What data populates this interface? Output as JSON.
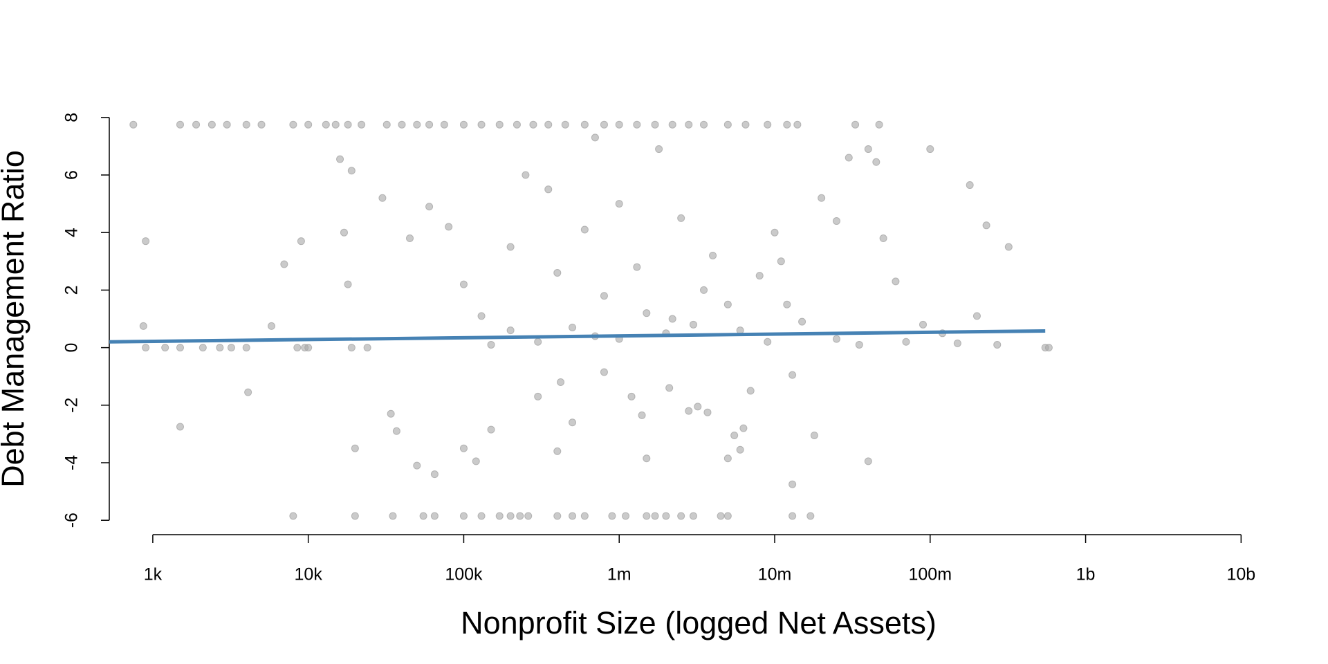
{
  "chart_data": {
    "type": "scatter",
    "xlabel": "Nonprofit Size (logged Net Assets)",
    "ylabel": "Debt Management Ratio",
    "xscale": "log",
    "xlim": [
      525,
      20000000000
    ],
    "ylim": [
      -6.5,
      8.5
    ],
    "xticks": [
      {
        "value": 1000,
        "label": "1k"
      },
      {
        "value": 10000,
        "label": "10k"
      },
      {
        "value": 100000,
        "label": "100k"
      },
      {
        "value": 1000000,
        "label": "1m"
      },
      {
        "value": 10000000,
        "label": "10m"
      },
      {
        "value": 100000000,
        "label": "100m"
      },
      {
        "value": 1000000000,
        "label": "1b"
      },
      {
        "value": 10000000000,
        "label": "10b"
      }
    ],
    "yticks": [
      -6,
      -4,
      -2,
      0,
      2,
      4,
      6,
      8
    ],
    "series": [
      {
        "type": "scatter",
        "color": "#a6a6a6",
        "x": [
          750,
          1500,
          1900,
          2400,
          3000,
          4000,
          5000,
          8000,
          10000,
          13000,
          15000,
          18000,
          22000,
          32000,
          40000,
          50000,
          60000,
          75000,
          100000,
          130000,
          170000,
          220000,
          280000,
          350000,
          450000,
          600000,
          800000,
          1000000,
          1300000,
          1700000,
          2200000,
          2800000,
          3500000,
          5000000,
          6500000,
          9000000,
          12000000,
          14000000,
          33000000,
          47000000,
          8000,
          20000,
          35000,
          55000,
          65000,
          100000,
          130000,
          170000,
          200000,
          230000,
          260000,
          400000,
          500000,
          600000,
          900000,
          1100000,
          1500000,
          1700000,
          2000000,
          2500000,
          3000000,
          4500000,
          5000000,
          13000000,
          17000000,
          900,
          1200,
          1500,
          2100,
          2700,
          3200,
          4000,
          8500,
          9500,
          10000,
          19000,
          24000,
          550000000,
          580000000,
          900,
          870,
          1500,
          4100,
          5800,
          7000,
          9000,
          16000,
          19000,
          18000,
          17000,
          20000,
          30000,
          34000,
          37000,
          50000,
          65000,
          45000,
          60000,
          80000,
          100000,
          120000,
          150000,
          100000,
          130000,
          200000,
          250000,
          300000,
          400000,
          420000,
          500000,
          350000,
          600000,
          800000,
          1200000,
          1400000,
          1500000,
          2100000,
          2800000,
          3200000,
          3700000,
          5000000,
          5500000,
          6000000,
          7000000,
          6300000,
          13000000,
          13000000,
          18000000,
          40000000,
          100000000,
          180000000,
          230000000,
          320000000,
          270000000,
          200000000,
          150000000,
          120000000,
          90000000,
          60000000,
          50000000,
          45000000,
          40000000,
          30000000,
          25000000,
          20000000,
          10000000,
          8000000,
          5000000,
          4000000,
          3000000,
          2000000,
          1500000,
          1000000,
          700000,
          500000,
          300000,
          200000,
          150000,
          1000000,
          1800000,
          700000,
          2500000,
          3500000,
          12000000,
          15000000,
          25000000,
          35000000,
          70000000,
          400000,
          800000,
          1300000,
          2200000,
          6000000,
          9000000,
          11000000
        ],
        "values": [
          7.75,
          7.75,
          7.75,
          7.75,
          7.75,
          7.75,
          7.75,
          7.75,
          7.75,
          7.75,
          7.75,
          7.75,
          7.75,
          7.75,
          7.75,
          7.75,
          7.75,
          7.75,
          7.75,
          7.75,
          7.75,
          7.75,
          7.75,
          7.75,
          7.75,
          7.75,
          7.75,
          7.75,
          7.75,
          7.75,
          7.75,
          7.75,
          7.75,
          7.75,
          7.75,
          7.75,
          7.75,
          7.75,
          7.75,
          7.75,
          -5.85,
          -5.85,
          -5.85,
          -5.85,
          -5.85,
          -5.85,
          -5.85,
          -5.85,
          -5.85,
          -5.85,
          -5.85,
          -5.85,
          -5.85,
          -5.85,
          -5.85,
          -5.85,
          -5.85,
          -5.85,
          -5.85,
          -5.85,
          -5.85,
          -5.85,
          -5.85,
          -5.85,
          -5.85,
          0,
          0,
          0,
          0,
          0,
          0,
          0,
          0,
          0,
          0,
          0,
          0,
          0,
          0,
          3.7,
          0.75,
          -2.75,
          -1.55,
          0.75,
          2.9,
          3.7,
          6.55,
          6.15,
          2.2,
          4.0,
          -3.5,
          5.2,
          -2.3,
          -2.9,
          -4.1,
          -4.4,
          3.8,
          4.9,
          4.2,
          -3.5,
          -3.95,
          -2.85,
          2.2,
          1.1,
          3.5,
          6.0,
          -1.7,
          -3.6,
          -1.2,
          -2.6,
          5.5,
          4.1,
          -0.85,
          -1.7,
          -2.35,
          -3.85,
          -1.4,
          -2.2,
          -2.05,
          -2.25,
          -3.85,
          -3.05,
          -3.55,
          -1.5,
          -2.8,
          -0.95,
          -4.75,
          -3.05,
          -3.95,
          6.9,
          5.65,
          4.25,
          3.5,
          0.1,
          1.1,
          0.15,
          0.5,
          0.8,
          2.3,
          3.8,
          6.45,
          6.9,
          6.6,
          4.4,
          5.2,
          4.0,
          2.5,
          1.5,
          3.2,
          0.8,
          0.5,
          1.2,
          0.3,
          0.4,
          0.7,
          0.2,
          0.6,
          0.1,
          5.0,
          6.9,
          7.3,
          4.5,
          2.0,
          1.5,
          0.9,
          0.3,
          0.1,
          0.2,
          2.6,
          1.8,
          2.8,
          1.0,
          0.6,
          0.2,
          3.0
        ]
      },
      {
        "type": "line",
        "color": "#4682b4",
        "x": [
          525,
          550000000
        ],
        "values": [
          0.2,
          0.58
        ]
      }
    ]
  }
}
